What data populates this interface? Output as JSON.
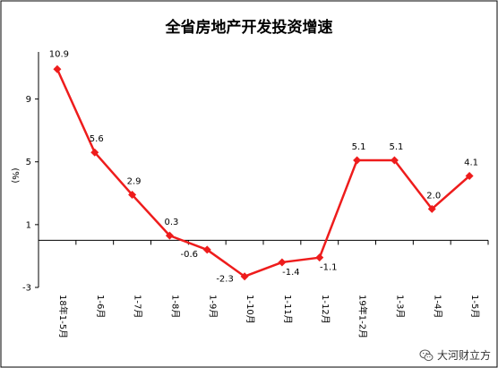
{
  "chart_data": {
    "type": "line",
    "title": "全省房地产开发投资增速",
    "ylabel": "(%)",
    "ylim": [
      -3,
      12
    ],
    "yticks": [
      -3,
      1,
      5,
      9
    ],
    "color": "#ee1c1c",
    "categories": [
      "18年1-5月",
      "1-6月",
      "1-7月",
      "1-8月",
      "1-9月",
      "1-10月",
      "1-11月",
      "1-12月",
      "19年1-2月",
      "1-3月",
      "1-4月",
      "1-5月"
    ],
    "series": [
      {
        "values": [
          10.9,
          5.6,
          2.9,
          0.3,
          -0.6,
          -2.3,
          -1.4,
          -1.1,
          5.1,
          5.1,
          2.0,
          4.1
        ],
        "labels": [
          "10.9",
          "5.6",
          "2.9",
          "0.3",
          "-0.6",
          "-2.3",
          "-1.4",
          "-1.1",
          "5.1",
          "5.1",
          "2.0",
          "4.1"
        ]
      }
    ]
  },
  "watermark": {
    "text": "大河财立方",
    "icon": "wechat-icon"
  }
}
